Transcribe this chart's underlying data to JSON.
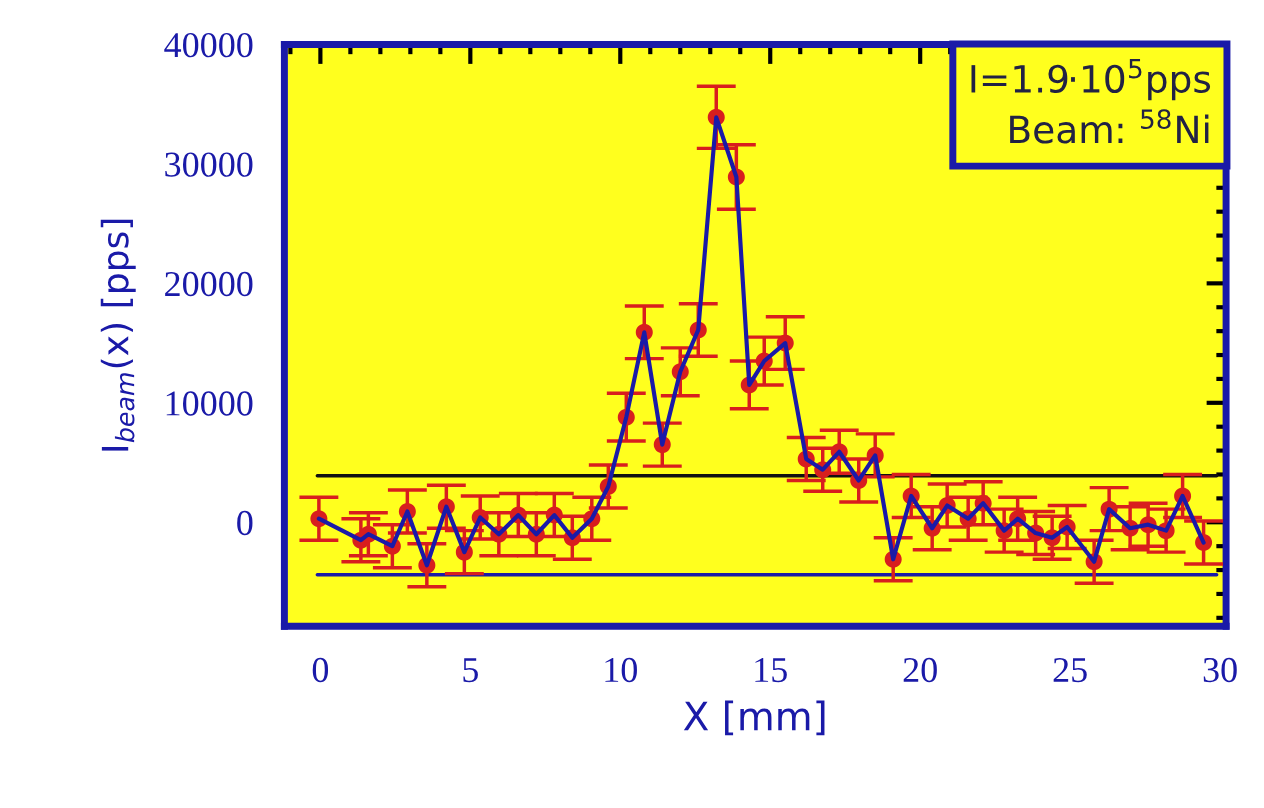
{
  "chart_data": {
    "type": "scatter",
    "xlabel": "X [mm]",
    "ylabel": "I$_{beam}$(x) [pps]",
    "xlim": [
      -1.2,
      30.2
    ],
    "ylim": [
      -8700,
      40000
    ],
    "xticks": [
      0,
      5,
      10,
      15,
      20,
      25,
      30
    ],
    "yticks": [
      0,
      10000,
      20000,
      30000,
      40000
    ],
    "grid": false,
    "legend": false,
    "marker": "circle",
    "series": [
      {
        "color": "#d81e1e",
        "x": [
          -0.05,
          1.35,
          1.6,
          2.4,
          2.9,
          3.55,
          4.2,
          4.8,
          5.33,
          5.95,
          6.6,
          7.2,
          7.8,
          8.4,
          9.05,
          9.6,
          10.2,
          10.8,
          11.4,
          12.0,
          12.6,
          13.2,
          13.87,
          14.3,
          14.8,
          15.5,
          16.2,
          16.75,
          17.3,
          17.95,
          18.5,
          19.1,
          19.7,
          20.4,
          20.9,
          21.6,
          22.1,
          22.8,
          23.25,
          23.85,
          24.4,
          24.9,
          25.8,
          26.3,
          27.0,
          27.6,
          28.2,
          28.75,
          29.45
        ],
        "values": [
          300,
          -1500,
          -1000,
          -2000,
          900,
          -3600,
          1300,
          -2500,
          400,
          -1000,
          600,
          -1000,
          600,
          -1300,
          300,
          3000,
          8800,
          15900,
          6500,
          12600,
          16100,
          33900,
          28900,
          11500,
          13500,
          15000,
          5300,
          4400,
          5900,
          3500,
          5600,
          -3100,
          2200,
          -500,
          1400,
          300,
          1600,
          -700,
          300,
          -900,
          -1300,
          -400,
          -3300,
          1100,
          -500,
          -200,
          -700,
          2200,
          -1700
        ],
        "errors": [
          1800,
          1800,
          1800,
          1800,
          1800,
          1800,
          1800,
          1800,
          1800,
          1800,
          1800,
          1800,
          1800,
          1800,
          1800,
          1800,
          2000,
          2200,
          1800,
          2000,
          2200,
          2600,
          2700,
          2000,
          2000,
          2200,
          1800,
          1800,
          1800,
          1800,
          1800,
          1800,
          1800,
          1800,
          1800,
          1800,
          1800,
          1800,
          1800,
          1800,
          1800,
          1800,
          1800,
          1800,
          1800,
          1800,
          1800,
          1800,
          1800
        ]
      },
      {
        "type": "line",
        "color": "#1a1aa8",
        "marker": "none",
        "line_style": "solid",
        "x": [
          -0.05,
          1.35,
          1.6,
          2.4,
          2.9,
          3.55,
          4.2,
          4.8,
          5.33,
          5.95,
          6.6,
          7.2,
          7.8,
          8.4,
          9.05,
          9.6,
          10.2,
          10.8,
          11.4,
          12.0,
          12.6,
          13.2,
          13.87,
          14.3,
          14.8,
          15.5,
          16.2,
          16.75,
          17.3,
          17.95,
          18.5,
          19.1,
          19.7,
          20.4,
          20.9,
          21.6,
          22.1,
          22.8,
          23.25,
          23.85,
          24.4,
          24.9,
          25.8,
          26.3,
          27.0,
          27.6,
          28.2,
          28.75,
          29.45
        ],
        "values": [
          300,
          -1500,
          -1000,
          -2000,
          900,
          -3600,
          1300,
          -2500,
          400,
          -1000,
          600,
          -1000,
          600,
          -1300,
          300,
          3000,
          8800,
          15900,
          6500,
          12600,
          16100,
          33900,
          28900,
          11500,
          13500,
          15000,
          5300,
          4400,
          5900,
          3500,
          5600,
          -3100,
          2200,
          -500,
          1400,
          300,
          1600,
          -700,
          300,
          -900,
          -1300,
          -400,
          -3300,
          1100,
          -500,
          -200,
          -700,
          2200,
          -1700
        ]
      }
    ],
    "ref_lines": [
      {
        "axis": "y",
        "value": 3900,
        "color": "#111111"
      },
      {
        "axis": "y",
        "value": -4400,
        "color": "#1a1aa8"
      }
    ],
    "annotations": [
      "I=1.9·10$^{5}$pps\nBeam: $^{58}$Ni"
    ]
  }
}
